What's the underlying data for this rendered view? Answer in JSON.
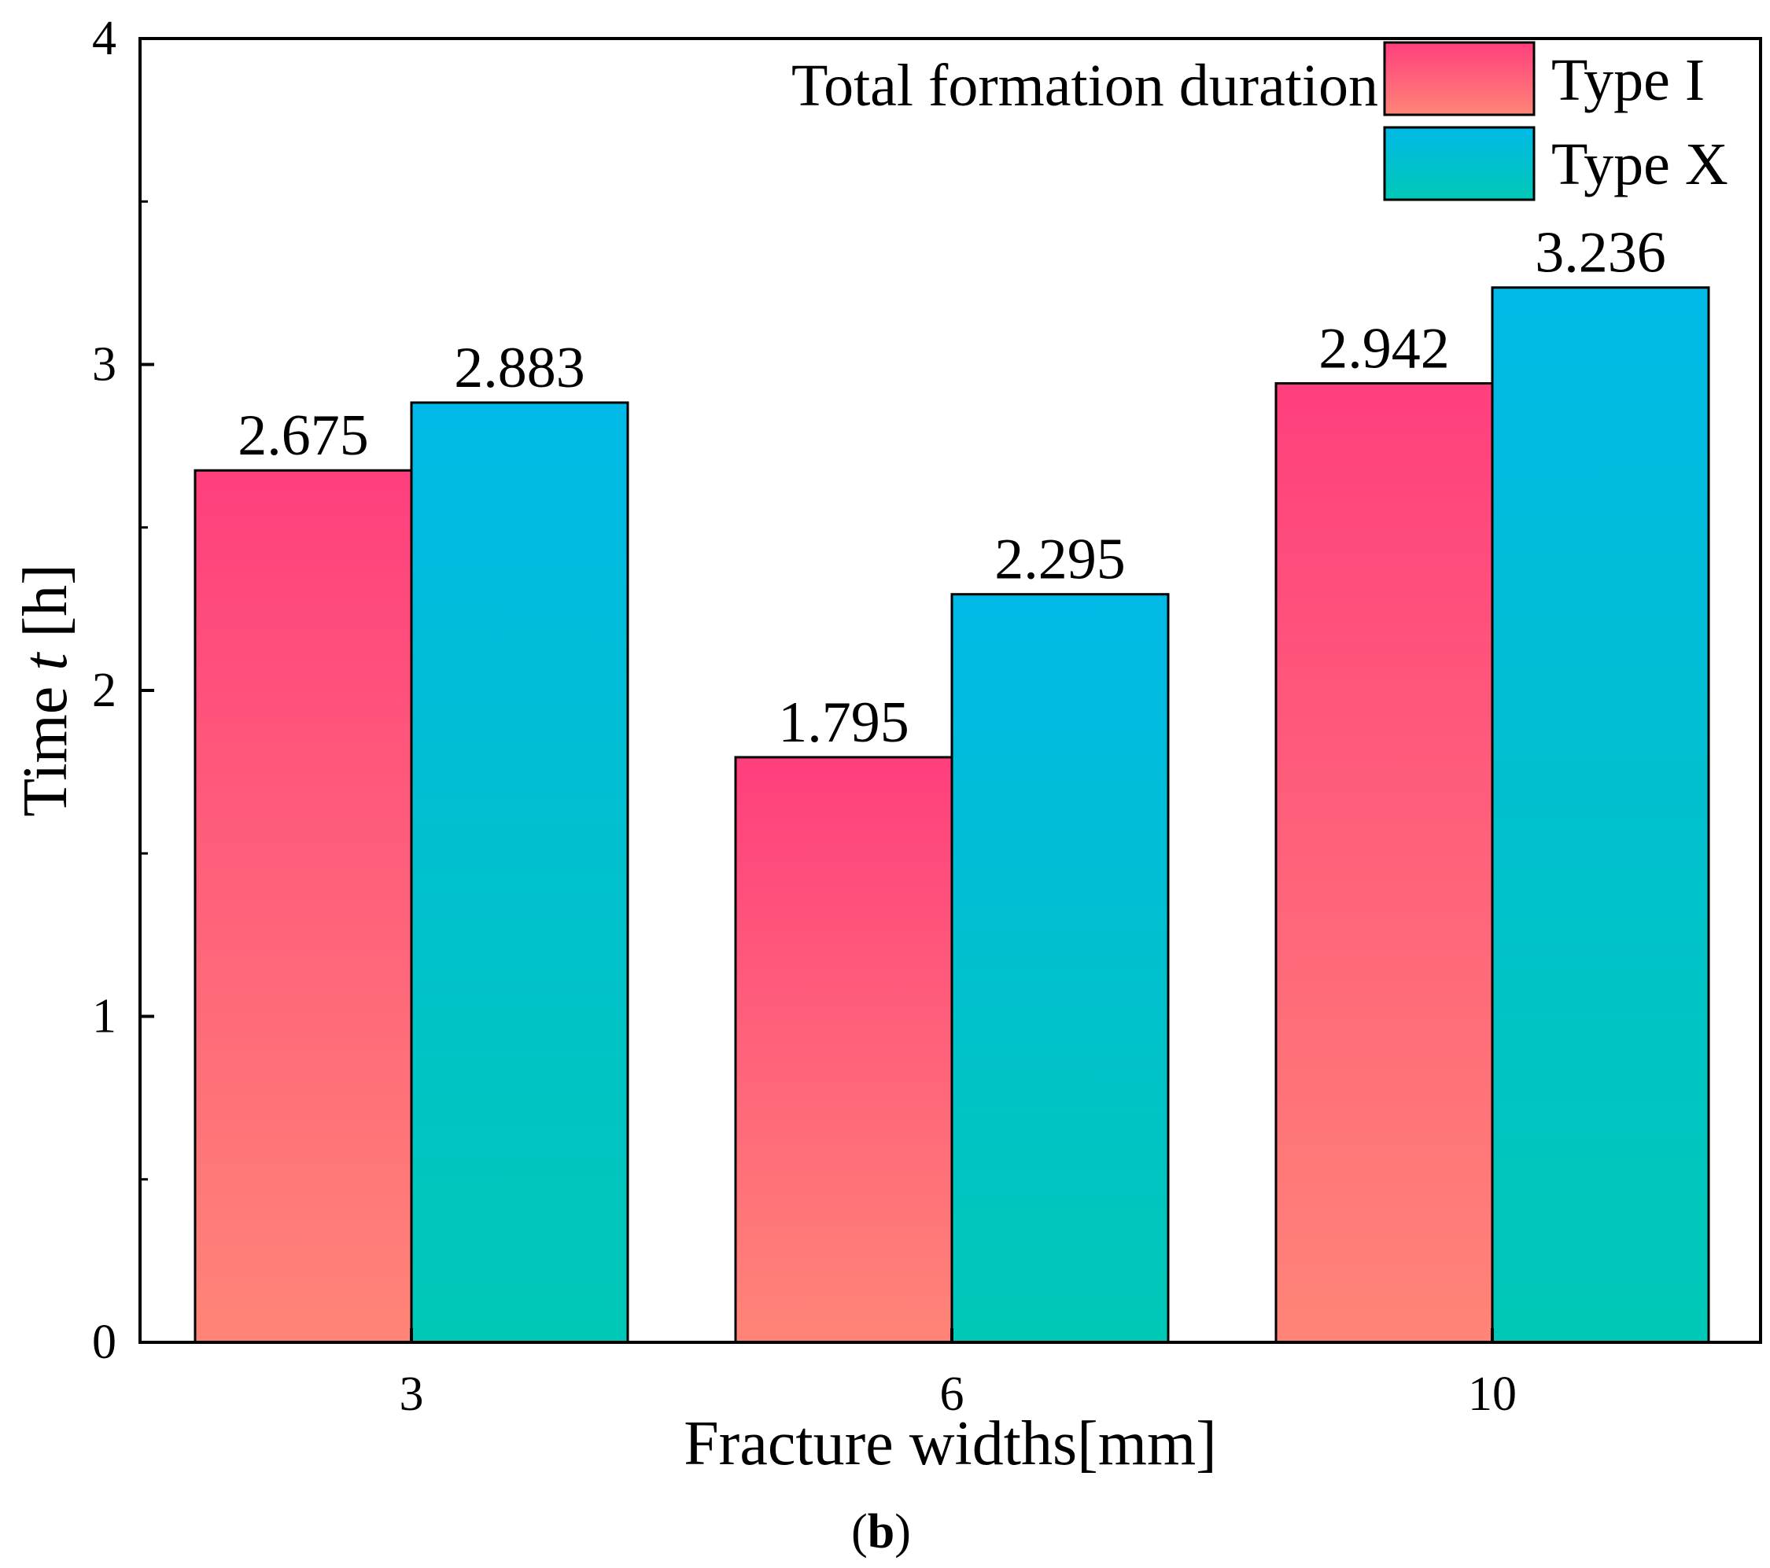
{
  "chart_data": {
    "type": "bar",
    "title": "",
    "legend_title": "Total formation duration",
    "categories": [
      "3",
      "6",
      "10"
    ],
    "series": [
      {
        "name": "Type I",
        "values": [
          2.675,
          1.795,
          2.942
        ],
        "data_labels": [
          "2.675",
          "1.795",
          "2.942"
        ]
      },
      {
        "name": "Type X",
        "values": [
          2.883,
          2.295,
          3.236
        ],
        "data_labels": [
          "2.883",
          "2.295",
          "3.236"
        ]
      }
    ],
    "xlabel": "Fracture widths[mm]",
    "ylabel_prefix": "Time ",
    "ylabel_var": "t",
    "ylabel_suffix": " [h]",
    "ylim": [
      0,
      4
    ],
    "yticks": [
      "0",
      "1",
      "2",
      "3",
      "4"
    ],
    "legend_position": "top-right",
    "grid": false,
    "panel_label": {
      "open": "(",
      "letter": "b",
      "close": ")"
    }
  },
  "colors": {
    "type_i_top": "#ff3f7d",
    "type_i_bottom": "#ff8577",
    "type_x_top": "#00b9e6",
    "type_x_bottom": "#00c8b6",
    "axis": "#000000"
  }
}
